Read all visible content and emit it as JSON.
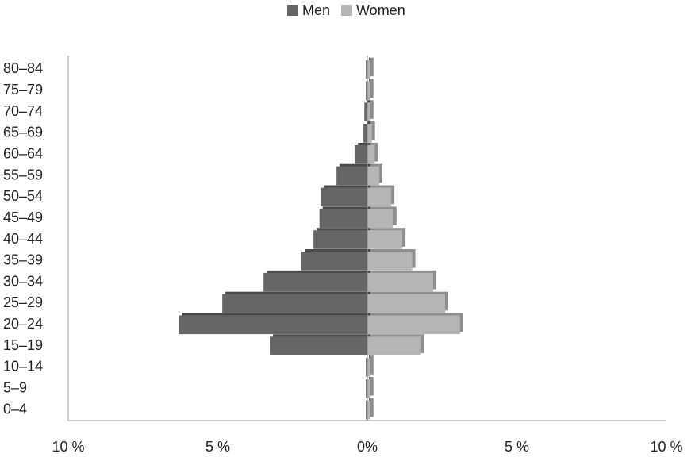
{
  "chart_data": {
    "type": "bar",
    "orientation": "horizontal",
    "stacked": true,
    "categories": [
      "0–4",
      "5–9",
      "10–14",
      "15–19",
      "20–24",
      "25–29",
      "30–34",
      "35–39",
      "40–44",
      "45–49",
      "50–54",
      "55–59",
      "60–64",
      "65–69",
      "70–74",
      "75–79",
      "80–84"
    ],
    "series": [
      {
        "name": "Men",
        "color": "#666666",
        "values": [
          -0.05,
          -0.05,
          -0.05,
          -3.26,
          -6.29,
          -4.85,
          -3.47,
          -2.2,
          -1.8,
          -1.6,
          -1.56,
          -1.03,
          -0.42,
          -0.13,
          -0.1,
          -0.05,
          -0.05
        ]
      },
      {
        "name": "Women",
        "color": "#b5b5b5",
        "values": [
          0.1,
          0.1,
          0.1,
          1.8,
          3.1,
          2.6,
          2.2,
          1.5,
          1.17,
          0.87,
          0.8,
          0.4,
          0.25,
          0.15,
          0.1,
          0.1,
          0.1
        ]
      }
    ],
    "xlim": [
      -10,
      10
    ],
    "xticks": [
      {
        "value": -10,
        "label": "10 %"
      },
      {
        "value": -5,
        "label": "5 %"
      },
      {
        "value": 0,
        "label": "0%"
      },
      {
        "value": 5,
        "label": "5 %"
      },
      {
        "value": 10,
        "label": "10 %"
      }
    ],
    "legend": "top"
  }
}
